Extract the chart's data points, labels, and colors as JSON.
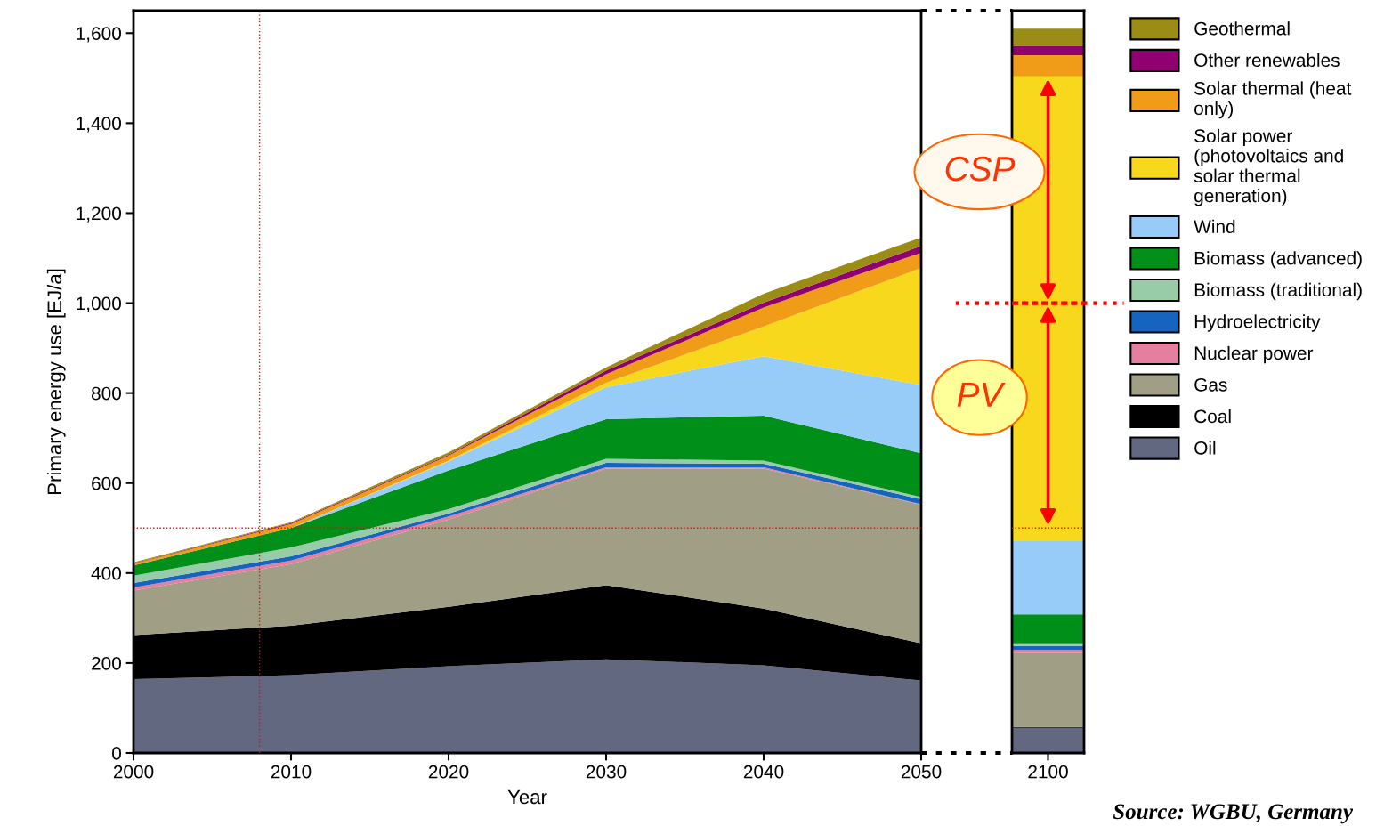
{
  "chart_data": [
    {
      "type": "area",
      "stacked": true,
      "xlabel": "Year",
      "ylabel": "Primary energy use [EJ/a]",
      "x": [
        2000,
        2010,
        2020,
        2030,
        2040,
        2050
      ],
      "xlim": [
        2000,
        2050
      ],
      "xticks": [
        2000,
        2010,
        2020,
        2030,
        2040,
        2050
      ],
      "ylim": [
        0,
        1650
      ],
      "yticks": [
        0,
        200,
        400,
        600,
        800,
        {
          "value": 1000,
          "label": "1,000"
        },
        {
          "value": 1200,
          "label": "1,200"
        },
        {
          "value": 1400,
          "label": "1,400"
        },
        {
          "value": 1600,
          "label": "1,600"
        }
      ],
      "grid": false,
      "legend": "right",
      "ref_lines": [
        {
          "axis": "x",
          "value": 2008,
          "color": "#ff0000",
          "line_style": "dotted"
        },
        {
          "axis": "y",
          "value": 500,
          "color": "#ff0000",
          "line_style": "dotted"
        }
      ],
      "series": [
        {
          "name": "Oil",
          "color": "#626880",
          "values": [
            164,
            173,
            193,
            208,
            195,
            161
          ]
        },
        {
          "name": "Coal",
          "color": "#000000",
          "values": [
            98,
            110,
            132,
            165,
            126,
            83
          ]
        },
        {
          "name": "Gas",
          "color": "#a09e84",
          "values": [
            99,
            137,
            194,
            259,
            311,
            308
          ]
        },
        {
          "name": "Nuclear power",
          "color": "#e57fa0",
          "values": [
            7,
            8,
            7,
            3,
            3,
            1
          ]
        },
        {
          "name": "Hydroelectricity",
          "color": "#1464c0",
          "values": [
            10,
            9,
            6,
            10,
            8,
            11
          ]
        },
        {
          "name": "Biomass (traditional)",
          "color": "#98cca8",
          "values": [
            16,
            20,
            10,
            9,
            7,
            5
          ]
        },
        {
          "name": "Biomass (advanced)",
          "color": "#008f18",
          "values": [
            23,
            43,
            86,
            88,
            100,
            97
          ]
        },
        {
          "name": "Wind",
          "color": "#98ccf8",
          "values": [
            0,
            0,
            20,
            71,
            132,
            152
          ]
        },
        {
          "name": "Solar power (photovoltaics and solar thermal generation)",
          "color": "#f8d81c",
          "values": [
            0,
            0,
            2,
            10,
            66,
            260
          ]
        },
        {
          "name": "Solar thermal (heat only)",
          "color": "#f09c18",
          "values": [
            4,
            9,
            11,
            19,
            42,
            34
          ]
        },
        {
          "name": "Other renewables",
          "color": "#900070",
          "values": [
            1,
            2,
            2,
            8,
            11,
            15
          ]
        },
        {
          "name": "Geothermal",
          "color": "#9a8c14",
          "values": [
            2,
            2,
            5,
            7,
            20,
            19
          ]
        }
      ]
    },
    {
      "type": "bar",
      "stacked": true,
      "tick_labels": "x",
      "categories": [
        "2100"
      ],
      "ylim": [
        0,
        1650
      ],
      "grid": false,
      "ref_lines": [
        {
          "axis": "y",
          "value": 500,
          "color": "#ff0000",
          "line_style": "dotted"
        },
        {
          "axis": "y",
          "value": 1000,
          "color": "#ff0000",
          "line_style": "dotted"
        }
      ],
      "annotations": [
        "CSP",
        "PV",
        "Source: WGBU, Germany"
      ],
      "series": [
        {
          "color": "#626880",
          "values": [
            56
          ]
        },
        {
          "color": "#000000",
          "values": [
            2
          ]
        },
        {
          "color": "#a09e84",
          "values": [
            164
          ]
        },
        {
          "color": "#e57fa0",
          "values": [
            7
          ]
        },
        {
          "color": "#1464c0",
          "values": [
            9
          ]
        },
        {
          "color": "#98cca8",
          "values": [
            6
          ]
        },
        {
          "color": "#008f18",
          "values": [
            64
          ]
        },
        {
          "color": "#98ccf8",
          "values": [
            163
          ]
        },
        {
          "color": "#f8d81c",
          "values": [
            1033
          ]
        },
        {
          "color": "#f09c18",
          "values": [
            47
          ]
        },
        {
          "color": "#900070",
          "values": [
            21
          ]
        },
        {
          "color": "#9a8c14",
          "values": [
            38
          ]
        }
      ]
    }
  ]
}
